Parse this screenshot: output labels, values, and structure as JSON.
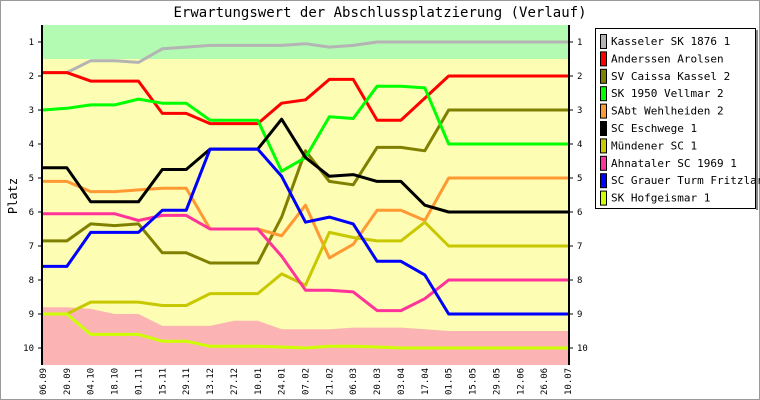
{
  "chart_data": {
    "type": "line",
    "title": "Erwartungswert der Abschlussplatzierung (Verlauf)",
    "ylabel": "Platz",
    "xlabel": "",
    "ylim": [
      1,
      10
    ],
    "y_inverted": true,
    "yticks": [
      "1",
      "2",
      "3",
      "4",
      "5",
      "6",
      "7",
      "8",
      "9",
      "10"
    ],
    "categories": [
      "06.09",
      "20.09",
      "04.10",
      "18.10",
      "01.11",
      "15.11",
      "29.11",
      "13.12",
      "27.12",
      "10.01",
      "24.01",
      "07.02",
      "21.02",
      "06.03",
      "20.03",
      "03.04",
      "17.04",
      "01.05",
      "15.05",
      "29.05",
      "12.06",
      "26.06",
      "10.07"
    ],
    "legend_position": "right",
    "bands": {
      "promotion_bottom": 1.5,
      "relegation_top": [
        8.8,
        8.8,
        8.85,
        9.0,
        9.0,
        9.35,
        9.35,
        9.35,
        9.2,
        9.2,
        9.45,
        9.45,
        9.45,
        9.4,
        9.4,
        9.4,
        9.45,
        9.5,
        9.5,
        9.5,
        9.5,
        9.5,
        9.5
      ],
      "colors": {
        "promotion": "#b3fab3",
        "middle": "#fdfdb3",
        "relegation": "#fbb3b3"
      }
    },
    "series": [
      {
        "name": "Kasseler SK 1876 1",
        "color": "#b4b4b4",
        "values": [
          1.9,
          1.9,
          1.55,
          1.55,
          1.6,
          1.2,
          1.15,
          1.1,
          1.1,
          1.1,
          1.1,
          1.05,
          1.15,
          1.1,
          1.0,
          1,
          1,
          1,
          1,
          1,
          1,
          1,
          1
        ]
      },
      {
        "name": "Anderssen Arolsen",
        "color": "#ff0000",
        "values": [
          1.9,
          1.9,
          2.15,
          2.15,
          2.15,
          3.1,
          3.1,
          3.4,
          3.4,
          3.4,
          2.8,
          2.7,
          2.1,
          2.1,
          3.3,
          3.3,
          2.65,
          2,
          2,
          2,
          2,
          2,
          2
        ]
      },
      {
        "name": "SV Caissa Kassel 2",
        "color": "#808000",
        "values": [
          6.85,
          6.85,
          6.35,
          6.4,
          6.35,
          7.2,
          7.2,
          7.5,
          7.5,
          7.5,
          6.15,
          4.2,
          5.1,
          5.2,
          4.1,
          4.1,
          4.2,
          3,
          3,
          3,
          3,
          3,
          3
        ]
      },
      {
        "name": "SK 1950 Vellmar 2",
        "color": "#00ff00",
        "values": [
          3.0,
          2.95,
          2.85,
          2.85,
          2.68,
          2.8,
          2.8,
          3.3,
          3.3,
          3.3,
          4.8,
          4.4,
          3.2,
          3.25,
          2.3,
          2.3,
          2.35,
          4,
          4,
          4,
          4,
          4,
          4
        ]
      },
      {
        "name": "SAbt Wehlheiden 2",
        "color": "#ff9933",
        "values": [
          5.1,
          5.1,
          5.4,
          5.4,
          5.35,
          5.3,
          5.3,
          6.5,
          6.5,
          6.5,
          6.7,
          5.8,
          7.35,
          6.95,
          5.95,
          5.95,
          6.25,
          5,
          5,
          5,
          5,
          5,
          5
        ]
      },
      {
        "name": "SC Eschwege 1",
        "color": "#000000",
        "values": [
          4.7,
          4.7,
          5.7,
          5.7,
          5.7,
          4.75,
          4.75,
          4.15,
          4.15,
          4.15,
          3.27,
          4.4,
          4.95,
          4.9,
          5.1,
          5.1,
          5.8,
          6,
          6,
          6,
          6,
          6,
          6
        ]
      },
      {
        "name": "Mündener SC 1",
        "color": "#c8c800",
        "values": [
          9.0,
          9.0,
          8.65,
          8.65,
          8.65,
          8.75,
          8.75,
          8.4,
          8.4,
          8.4,
          7.82,
          8.15,
          6.6,
          6.75,
          6.85,
          6.85,
          6.3,
          7,
          7,
          7,
          7,
          7,
          7
        ]
      },
      {
        "name": "Ahnataler SC 1969 1",
        "color": "#ff3399",
        "values": [
          6.05,
          6.05,
          6.05,
          6.05,
          6.25,
          6.1,
          6.1,
          6.5,
          6.5,
          6.5,
          7.3,
          8.3,
          8.3,
          8.35,
          8.9,
          8.9,
          8.55,
          8,
          8,
          8,
          8,
          8,
          8
        ]
      },
      {
        "name": "SC Grauer Turm Fritzlar",
        "color": "#0000ff",
        "values": [
          7.6,
          7.6,
          6.6,
          6.6,
          6.6,
          5.95,
          5.95,
          4.15,
          4.15,
          4.15,
          4.95,
          6.3,
          6.15,
          6.35,
          7.45,
          7.45,
          7.85,
          9,
          9,
          9,
          9,
          9,
          9
        ]
      },
      {
        "name": "SK Hofgeismar 1",
        "color": "#ccff00",
        "values": [
          9.0,
          9.0,
          9.6,
          9.6,
          9.6,
          9.8,
          9.8,
          9.95,
          9.95,
          9.95,
          9.97,
          10,
          9.95,
          9.95,
          9.97,
          10,
          10,
          10,
          10,
          10,
          10,
          10,
          10
        ]
      }
    ]
  }
}
